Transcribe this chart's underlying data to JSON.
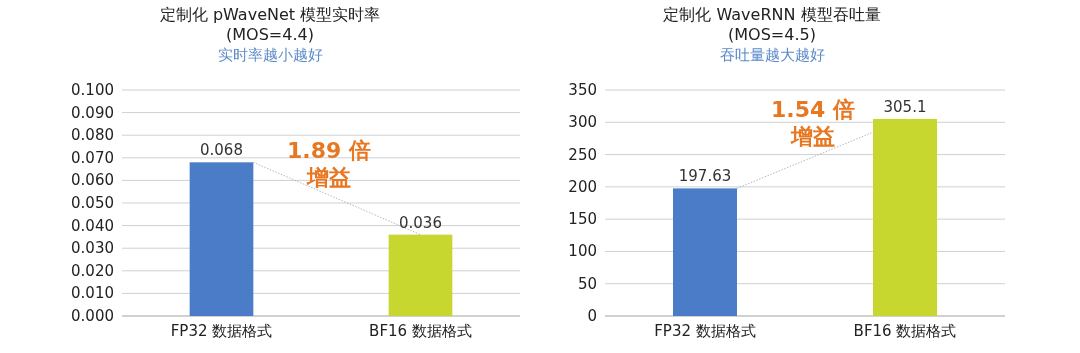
{
  "chart_data": [
    {
      "type": "bar",
      "title": "定制化 pWaveNet 模型实时率\n(MOS=4.4)",
      "subtitle": "实时率越小越好",
      "categories": [
        "FP32 数据格式",
        "BF16 数据格式"
      ],
      "values": [
        0.068,
        0.036
      ],
      "colors": [
        "#4a7cc7",
        "#c8d630"
      ],
      "ylim": [
        0,
        0.1
      ],
      "yticks": [
        {
          "value": 0,
          "label": "0.000"
        },
        {
          "value": 0.01,
          "label": "0.010"
        },
        {
          "value": 0.02,
          "label": "0.020"
        },
        {
          "value": 0.03,
          "label": "0.030"
        },
        {
          "value": 0.04,
          "label": "0.040"
        },
        {
          "value": 0.05,
          "label": "0.050"
        },
        {
          "value": 0.06,
          "label": "0.060"
        },
        {
          "value": 0.07,
          "label": "0.070"
        },
        {
          "value": 0.08,
          "label": "0.080"
        },
        {
          "value": 0.09,
          "label": "0.090"
        },
        {
          "value": 0.1,
          "label": "0.100"
        }
      ],
      "grid": "y",
      "data_labels": true,
      "annotations": [
        "1.89 倍",
        "增益"
      ]
    },
    {
      "type": "bar",
      "title": "定制化 WaveRNN 模型吞吐量\n(MOS=4.5)",
      "subtitle": "吞吐量越大越好",
      "categories": [
        "FP32 数据格式",
        "BF16 数据格式"
      ],
      "values": [
        197.63,
        305.1
      ],
      "colors": [
        "#4a7cc7",
        "#c8d630"
      ],
      "ylim": [
        0,
        350
      ],
      "yticks": [
        0,
        50,
        100,
        150,
        200,
        250,
        300,
        350
      ],
      "grid": "y",
      "data_labels": true,
      "annotations": [
        "1.54 倍",
        "增益"
      ]
    }
  ]
}
